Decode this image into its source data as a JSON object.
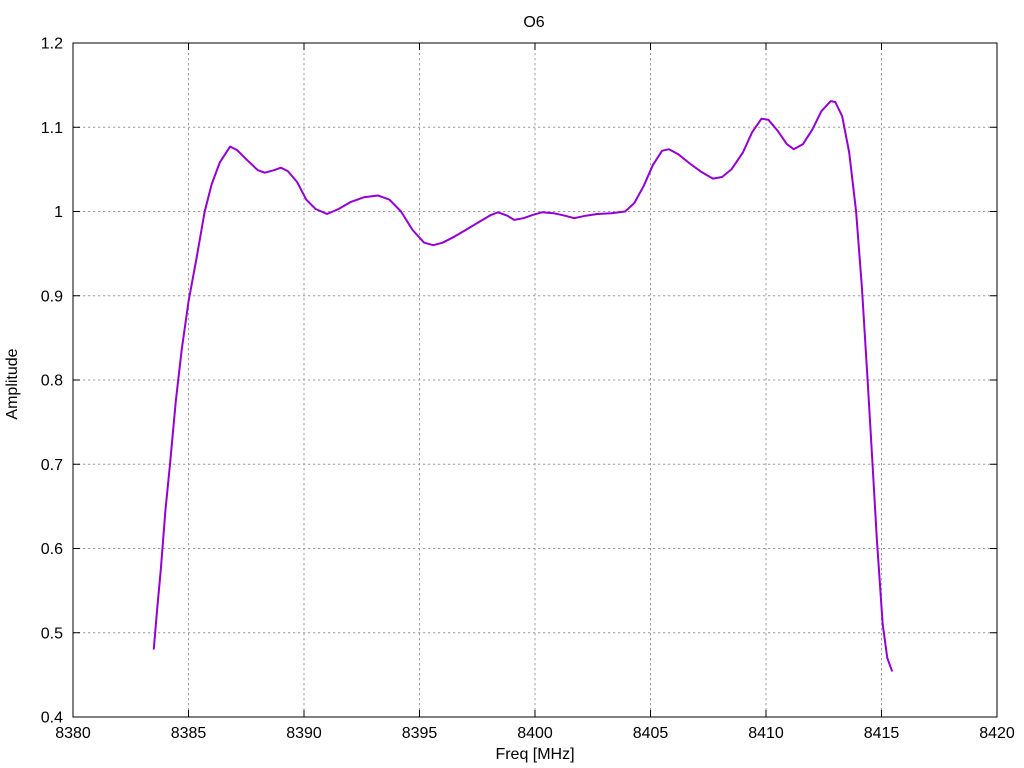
{
  "chart_data": {
    "type": "line",
    "title": "O6",
    "xlabel": "Freq [MHz]",
    "ylabel": "Amplitude",
    "xlim": [
      8380,
      8420
    ],
    "ylim": [
      0.4,
      1.2
    ],
    "xticks": {
      "values": [
        8380,
        8385,
        8390,
        8395,
        8400,
        8405,
        8410,
        8415,
        8420
      ],
      "labels": [
        "8380",
        "8385",
        "8390",
        "8395",
        "8400",
        "8405",
        "8410",
        "8415",
        "8420"
      ]
    },
    "yticks": {
      "values": [
        0.4,
        0.5,
        0.6,
        0.7,
        0.8,
        0.9,
        1.0,
        1.1,
        1.2
      ],
      "labels": [
        "0.4",
        "0.5",
        "0.6",
        "0.7",
        "0.8",
        "0.9",
        "1",
        "1.1",
        "1.2"
      ]
    },
    "grid": true,
    "legend_position": "none",
    "series": [
      {
        "name": "O6",
        "color": "#9400d3",
        "x": [
          8383.5,
          8383.65,
          8383.8,
          8384.0,
          8384.2,
          8384.45,
          8384.7,
          8385.0,
          8385.35,
          8385.7,
          8386.0,
          8386.35,
          8386.8,
          8387.1,
          8387.5,
          8388.0,
          8388.3,
          8388.7,
          8389.0,
          8389.3,
          8389.7,
          8390.1,
          8390.5,
          8391.0,
          8391.5,
          8392.0,
          8392.6,
          8393.2,
          8393.7,
          8394.2,
          8394.7,
          8395.2,
          8395.6,
          8396.0,
          8396.5,
          8397.0,
          8397.6,
          8398.1,
          8398.4,
          8398.8,
          8399.1,
          8399.5,
          8399.9,
          8400.3,
          8400.8,
          8401.3,
          8401.7,
          8402.2,
          8402.7,
          8403.3,
          8403.9,
          8404.3,
          8404.7,
          8405.1,
          8405.5,
          8405.8,
          8406.2,
          8406.7,
          8407.2,
          8407.7,
          8408.1,
          8408.5,
          8409.0,
          8409.4,
          8409.8,
          8410.1,
          8410.5,
          8410.9,
          8411.2,
          8411.6,
          8412.0,
          8412.4,
          8412.8,
          8413.0,
          8413.3,
          8413.6,
          8413.9,
          8414.15,
          8414.4,
          8414.6,
          8414.8,
          8415.05,
          8415.25,
          8415.45
        ],
        "y": [
          0.481,
          0.53,
          0.575,
          0.645,
          0.7,
          0.775,
          0.835,
          0.893,
          0.945,
          1.0,
          1.032,
          1.058,
          1.077,
          1.073,
          1.062,
          1.049,
          1.046,
          1.049,
          1.052,
          1.048,
          1.035,
          1.014,
          1.003,
          0.997,
          1.003,
          1.011,
          1.017,
          1.019,
          1.014,
          1.0,
          0.978,
          0.963,
          0.96,
          0.963,
          0.97,
          0.978,
          0.988,
          0.996,
          0.999,
          0.995,
          0.99,
          0.992,
          0.996,
          0.999,
          0.998,
          0.995,
          0.992,
          0.995,
          0.997,
          0.998,
          1.0,
          1.01,
          1.03,
          1.055,
          1.072,
          1.074,
          1.068,
          1.057,
          1.047,
          1.039,
          1.041,
          1.05,
          1.07,
          1.094,
          1.11,
          1.109,
          1.096,
          1.08,
          1.074,
          1.08,
          1.097,
          1.119,
          1.131,
          1.13,
          1.113,
          1.07,
          1.0,
          0.91,
          0.8,
          0.705,
          0.61,
          0.51,
          0.47,
          0.455
        ]
      }
    ]
  },
  "colors": {
    "line": "#9400d3",
    "grid": "#9b9b9b",
    "axis": "#000000",
    "background": "#ffffff",
    "text": "#000000"
  }
}
